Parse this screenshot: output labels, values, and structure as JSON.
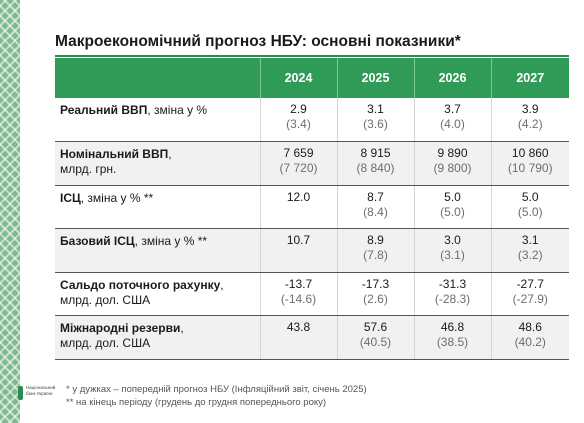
{
  "title": "Макроекономічний прогноз НБУ: основні показники*",
  "colors": {
    "accent": "#2f9b57",
    "rule": "#2e8b50",
    "header_text": "#ffffff",
    "prev_text": "#6e6e6e"
  },
  "table": {
    "header_label": "",
    "years": [
      "2024",
      "2025",
      "2026",
      "2027"
    ],
    "rows": [
      {
        "label_bold": "Реальний ВВП",
        "label_rest": ", зміна у %",
        "label_line2": "",
        "values": [
          {
            "current": "2.9",
            "previous": "(3.4)"
          },
          {
            "current": "3.1",
            "previous": "(3.6)"
          },
          {
            "current": "3.7",
            "previous": "(4.0)"
          },
          {
            "current": "3.9",
            "previous": "(4.2)"
          }
        ]
      },
      {
        "label_bold": "Номінальний ВВП",
        "label_rest": ",",
        "label_line2": "млрд. грн.",
        "values": [
          {
            "current": "7 659",
            "previous": "(7 720)"
          },
          {
            "current": "8 915",
            "previous": "(8 840)"
          },
          {
            "current": "9 890",
            "previous": "(9 800)"
          },
          {
            "current": "10 860",
            "previous": "(10 790)"
          }
        ]
      },
      {
        "label_bold": "ІСЦ",
        "label_rest": ", зміна у % **",
        "label_line2": "",
        "values": [
          {
            "current": "12.0",
            "previous": ""
          },
          {
            "current": "8.7",
            "previous": "(8.4)"
          },
          {
            "current": "5.0",
            "previous": "(5.0)"
          },
          {
            "current": "5.0",
            "previous": "(5.0)"
          }
        ]
      },
      {
        "label_bold": "Базовий ІСЦ",
        "label_rest": ", зміна у % **",
        "label_line2": "",
        "values": [
          {
            "current": "10.7",
            "previous": ""
          },
          {
            "current": "8.9",
            "previous": "(7.8)"
          },
          {
            "current": "3.0",
            "previous": "(3.1)"
          },
          {
            "current": "3.1",
            "previous": "(3.2)"
          }
        ]
      },
      {
        "label_bold": "Сальдо поточного рахунку",
        "label_rest": ",",
        "label_line2": "млрд. дол. США",
        "values": [
          {
            "current": "-13.7",
            "previous": "(-14.6)"
          },
          {
            "current": "-17.3",
            "previous": "(2.6)"
          },
          {
            "current": "-31.3",
            "previous": "(-28.3)"
          },
          {
            "current": "-27.7",
            "previous": "(-27.9)"
          }
        ]
      },
      {
        "label_bold": "Міжнародні резерви",
        "label_rest": ",",
        "label_line2": "млрд. дол. США",
        "values": [
          {
            "current": "43.8",
            "previous": ""
          },
          {
            "current": "57.6",
            "previous": "(40.5)"
          },
          {
            "current": "46.8",
            "previous": "(38.5)"
          },
          {
            "current": "48.6",
            "previous": "(40.2)"
          }
        ]
      }
    ]
  },
  "footnotes": [
    "* у дужках – попередній прогноз НБУ (Інфляційний звіт, січень 2025)",
    "** на кінець періоду (грудень до грудня попереднього року)"
  ],
  "logo": {
    "line1": "Національний",
    "line2": "банк України",
    "icon": "nbu-logo-icon"
  }
}
